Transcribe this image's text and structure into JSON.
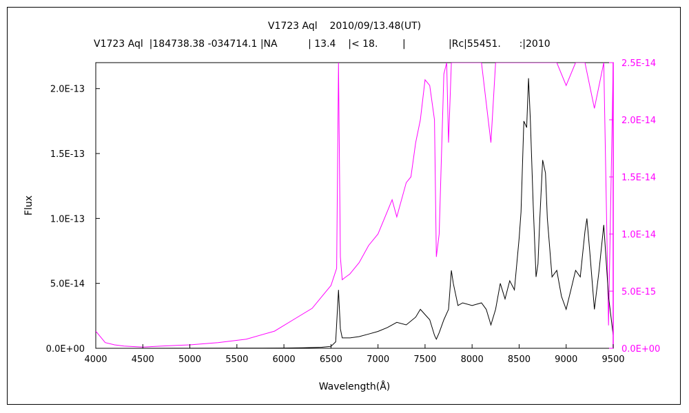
{
  "title": "V1723 Aql    2010/09/13.48(UT)",
  "subtitle": "V1723 Aql  |184738.38 -034714.1 |NA          | 13.4    |< 18.        |              |Rc|55451.      :|2010",
  "chart_data": {
    "type": "line",
    "title": "V1723 Aql    2010/09/13.48(UT)",
    "xlabel": "Wavelength(Å)",
    "ylabel": "Flux",
    "y2label": "",
    "xlim": [
      4000,
      9500
    ],
    "ylim": [
      0,
      2.2e-13
    ],
    "y2lim": [
      0,
      2.5e-14
    ],
    "xticks": [
      4000,
      4500,
      5000,
      5500,
      6000,
      6500,
      7000,
      7500,
      8000,
      8500,
      9000,
      9500
    ],
    "xtick_labels": [
      "4000",
      "4500",
      "5000",
      "5500",
      "6000",
      "6500",
      "7000",
      "7500",
      "8000",
      "8500",
      "9000",
      "9500"
    ],
    "yticks": [
      0,
      5e-14,
      1e-13,
      1.5e-13,
      2e-13
    ],
    "ytick_labels": [
      "0.0E+00",
      "5.0E-14",
      "1.0E-13",
      "1.5E-13",
      "2.0E-13"
    ],
    "y2ticks": [
      0,
      5e-15,
      1e-14,
      1.5e-14,
      2e-14,
      2.5e-14
    ],
    "y2tick_labels": [
      "0.0E+00",
      "5.0E-15",
      "1.0E-14",
      "1.5E-14",
      "2.0E-14",
      "2.5E-14"
    ],
    "grid": false,
    "series": [
      {
        "axis": "left",
        "color": "#000000",
        "x": [
          4000,
          4500,
          5000,
          5500,
          6000,
          6200,
          6400,
          6500,
          6550,
          6580,
          6600,
          6620,
          6650,
          6700,
          6800,
          6900,
          7000,
          7100,
          7200,
          7300,
          7400,
          7450,
          7500,
          7550,
          7600,
          7620,
          7650,
          7700,
          7750,
          7780,
          7800,
          7850,
          7900,
          8000,
          8100,
          8150,
          8200,
          8250,
          8300,
          8350,
          8400,
          8450,
          8500,
          8520,
          8550,
          8580,
          8600,
          8620,
          8650,
          8680,
          8700,
          8720,
          8750,
          8780,
          8800,
          8850,
          8900,
          8950,
          9000,
          9050,
          9100,
          9150,
          9200,
          9220,
          9250,
          9300,
          9350,
          9400,
          9450,
          9500
        ],
        "y": [
          0,
          0,
          5e-17,
          1e-16,
          2e-16,
          4e-16,
          8e-16,
          1.5e-15,
          5e-15,
          4.5e-14,
          1.5e-14,
          8e-15,
          8e-15,
          8e-15,
          9e-15,
          1.1e-14,
          1.3e-14,
          1.6e-14,
          2e-14,
          1.8e-14,
          2.4e-14,
          3e-14,
          2.6e-14,
          2.2e-14,
          1e-14,
          7e-15,
          1.2e-14,
          2.2e-14,
          3e-14,
          6e-14,
          5e-14,
          3.3e-14,
          3.5e-14,
          3.3e-14,
          3.5e-14,
          3e-14,
          1.8e-14,
          3e-14,
          5e-14,
          3.8e-14,
          5.2e-14,
          4.5e-14,
          8.5e-14,
          1.05e-13,
          1.75e-13,
          1.7e-13,
          2.08e-13,
          1.75e-13,
          1.1e-13,
          5.5e-14,
          6.5e-14,
          1e-13,
          1.45e-13,
          1.35e-13,
          1e-13,
          5.5e-14,
          6e-14,
          4e-14,
          3e-14,
          4.5e-14,
          6e-14,
          5.5e-14,
          9e-14,
          1e-13,
          7.5e-14,
          3e-14,
          6e-14,
          9.5e-14,
          4e-14,
          1e-14
        ]
      },
      {
        "axis": "right",
        "color": "#ff00ff",
        "x": [
          4000,
          4100,
          4200,
          4300,
          4500,
          4700,
          5000,
          5300,
          5600,
          5900,
          6100,
          6300,
          6400,
          6500,
          6560,
          6580,
          6600,
          6620,
          6650,
          6700,
          6800,
          6900,
          7000,
          7100,
          7150,
          7200,
          7300,
          7350,
          7400,
          7450,
          7500,
          7550,
          7600,
          7620,
          7650,
          7700,
          7730,
          7750,
          7780,
          7800,
          7850,
          7900,
          7950,
          8000,
          8100,
          8200,
          8250,
          8300,
          8400,
          8500,
          8600,
          8700,
          8800,
          8900,
          9000,
          9100,
          9200,
          9300,
          9400,
          9450,
          9500
        ],
        "y": [
          1.5e-15,
          5e-16,
          3e-16,
          2e-16,
          1e-16,
          2e-16,
          3e-16,
          5e-16,
          8e-16,
          1.5e-15,
          2.5e-15,
          3.5e-15,
          4.5e-15,
          5.5e-15,
          7e-15,
          2.5e-14,
          8e-15,
          6e-15,
          6.2e-15,
          6.5e-15,
          7.5e-15,
          9e-15,
          1e-14,
          1.2e-14,
          1.3e-14,
          1.15e-14,
          1.45e-14,
          1.5e-14,
          1.8e-14,
          2e-14,
          2.35e-14,
          2.3e-14,
          2e-14,
          8e-15,
          1e-14,
          2.4e-14,
          2.5e-14,
          1.8e-14,
          2.5e-14,
          2.5e-14,
          2.5e-14,
          2.5e-14,
          2.5e-14,
          2.5e-14,
          2.5e-14,
          1.8e-14,
          2.5e-14,
          2.5e-14,
          2.5e-14,
          2.5e-14,
          2.5e-14,
          2.5e-14,
          2.5e-14,
          2.5e-14,
          2.3e-14,
          2.5e-14,
          2.5e-14,
          2.1e-14,
          2.5e-14,
          2e-15,
          2.5e-14
        ]
      }
    ]
  }
}
